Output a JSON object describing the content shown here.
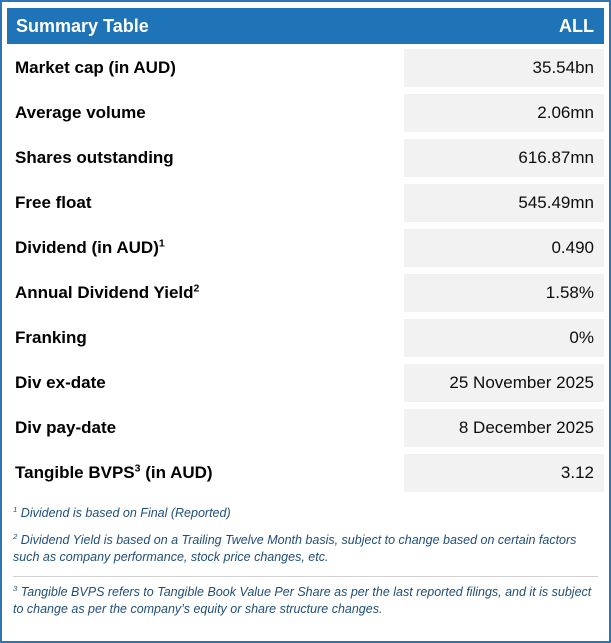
{
  "chart_data": {
    "type": "table",
    "title": "Summary Table",
    "scope_label": "ALL",
    "rows": [
      {
        "label": "Market cap (in AUD)",
        "value": "35.54bn"
      },
      {
        "label": "Average volume",
        "value": "2.06mn"
      },
      {
        "label": "Shares outstanding",
        "value": "616.87mn"
      },
      {
        "label": "Free float",
        "value": "545.49mn"
      },
      {
        "label": "Dividend (in AUD)¹",
        "value": "0.490"
      },
      {
        "label": "Annual Dividend Yield²",
        "value": "1.58%"
      },
      {
        "label": "Franking",
        "value": "0%"
      },
      {
        "label": "Div ex-date",
        "value": "25 November 2025"
      },
      {
        "label": "Div pay-date",
        "value": "8 December 2025"
      },
      {
        "label": "Tangible BVPS³ (in AUD)",
        "value": "3.12"
      }
    ]
  },
  "header": {
    "title": "Summary Table",
    "scope": "ALL"
  },
  "rows": [
    {
      "pre": "Market cap (in AUD)",
      "sup": "",
      "post": "",
      "value": "35.54bn"
    },
    {
      "pre": "Average volume",
      "sup": "",
      "post": "",
      "value": "2.06mn"
    },
    {
      "pre": "Shares outstanding",
      "sup": "",
      "post": "",
      "value": "616.87mn"
    },
    {
      "pre": "Free float",
      "sup": "",
      "post": "",
      "value": "545.49mn"
    },
    {
      "pre": "Dividend (in AUD)",
      "sup": "1",
      "post": "",
      "value": "0.490"
    },
    {
      "pre": "Annual Dividend Yield",
      "sup": "2",
      "post": "",
      "value": "1.58%"
    },
    {
      "pre": "Franking",
      "sup": "",
      "post": "",
      "value": "0%"
    },
    {
      "pre": "Div ex-date",
      "sup": "",
      "post": "",
      "value": "25 November 2025"
    },
    {
      "pre": "Div pay-date",
      "sup": "",
      "post": "",
      "value": "8 December 2025"
    },
    {
      "pre": "Tangible BVPS",
      "sup": "3",
      "post": " (in AUD)",
      "value": "3.12"
    }
  ],
  "footnotes": [
    {
      "sup": "1",
      "text": " Dividend is based on Final (Reported)"
    },
    {
      "sup": "2",
      "text": " Dividend Yield is based on a Trailing Twelve Month basis, subject to change based on certain factors such as company performance, stock price changes, etc."
    },
    {
      "sup": "3",
      "text": " Tangible BVPS refers to Tangible Book Value Per Share as per the last reported filings, and it is subject to change as per the company’s equity or share structure changes."
    }
  ],
  "colors": {
    "border": "#2e75b6",
    "header_bg": "#1f74b8",
    "header_text": "#ffffff",
    "value_cell_bg": "#f2f2f2",
    "label_text": "#000000",
    "footnote_text": "#1f4e79"
  }
}
